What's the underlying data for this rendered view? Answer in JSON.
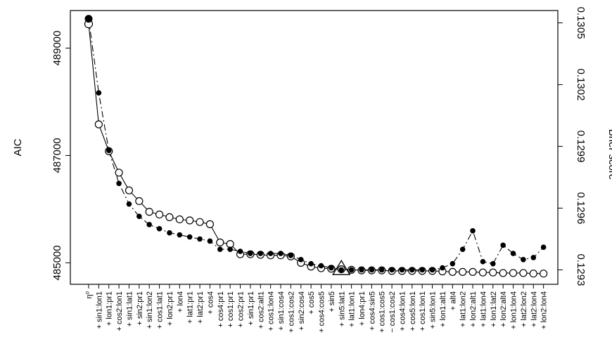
{
  "chart_data": {
    "type": "line",
    "title": "",
    "ylabel_left": "AIC",
    "ylabel_right": "Brier score",
    "ylim_left": [
      484600,
      489700
    ],
    "ylim_right": [
      0.12923,
      0.13056
    ],
    "yticks_left": [
      485000,
      487000,
      489000
    ],
    "yticks_right": [
      0.1293,
      0.1296,
      0.1299,
      0.1302,
      0.1305
    ],
    "yticks_left_labels": [
      "485000",
      "487000",
      "489000"
    ],
    "yticks_right_labels": [
      "0.1293",
      "0.1296",
      "0.1299",
      "0.1302",
      "0.1305"
    ],
    "grid": false,
    "categories": [
      "η⁰",
      "+ sin1:lon1",
      "+ lon1:pr1",
      "+ cos2:lon1",
      "+ sin1:lat1",
      "+ sin2:pr1",
      "+ sin1:lon2",
      "+ cos1:lat1",
      "+ lon2:pr1",
      "+ lon4",
      "+ lat1:pr1",
      "+ lat2:pr1",
      "+ cos4",
      "+ cos4:pr1",
      "+ cos1:pr1",
      "+ cos2:pr1",
      "+ sin1:pr1",
      "+ cos2:alt1",
      "+ cos1:lon4",
      "+ sin1:cos4",
      "+ cos1:cos2",
      "+ sin2:cos4",
      "+ cos5",
      "+ cos4:cos5",
      "+ sin5",
      "+ sin5:lat1",
      "+ lat1:lon1",
      "+ lon4:pr1",
      "+ cos4:sin5",
      "+ cos1:cos5",
      "− cos1:cos2",
      "+ cos4:lon1",
      "+ cos5:lon1",
      "+ cos1:lon1",
      "+ sin5:lon1",
      "+ lon1:alt1",
      "+ alt4",
      "+ lat1:lon2",
      "+ lon2:alt1",
      "+ lat1:lon4",
      "+ lon1:lat2",
      "+ lon2:alt4",
      "+ lon1:lon4",
      "+ lat2:lon2",
      "+ lat2:lon4",
      "+ lon2:lon4"
    ],
    "series": [
      {
        "marker": "open-circle",
        "axis": "left",
        "values": [
          489450,
          487580,
          487080,
          486680,
          486350,
          486150,
          485950,
          485900,
          485850,
          485810,
          485790,
          485760,
          485720,
          485380,
          485350,
          485160,
          485160,
          485150,
          485140,
          485140,
          485120,
          485000,
          484930,
          484900,
          484890,
          484880,
          484870,
          484860,
          484860,
          484860,
          484850,
          484850,
          484850,
          484850,
          484850,
          484840,
          484830,
          484830,
          484830,
          484820,
          484820,
          484810,
          484810,
          484810,
          484800,
          484800
        ]
      },
      {
        "marker": "filled-circle",
        "axis": "right",
        "values": [
          0.13052,
          0.13016,
          0.12988,
          0.12972,
          0.12962,
          0.12956,
          0.12952,
          0.1295,
          0.12948,
          0.12947,
          0.12946,
          0.12945,
          0.12944,
          0.1294,
          0.1294,
          0.12939,
          0.12938,
          0.12938,
          0.12938,
          0.12938,
          0.12937,
          0.12935,
          0.12933,
          0.12932,
          0.12931,
          0.1293,
          0.1293,
          0.1293,
          0.1293,
          0.1293,
          0.1293,
          0.1293,
          0.1293,
          0.1293,
          0.1293,
          0.12931,
          0.12933,
          0.1294,
          0.12949,
          0.12934,
          0.12933,
          0.12942,
          0.12938,
          0.12935,
          0.12936,
          0.12941
        ]
      }
    ],
    "annotation": {
      "marker": "triangle",
      "category": "+ sin5:lat1"
    }
  }
}
